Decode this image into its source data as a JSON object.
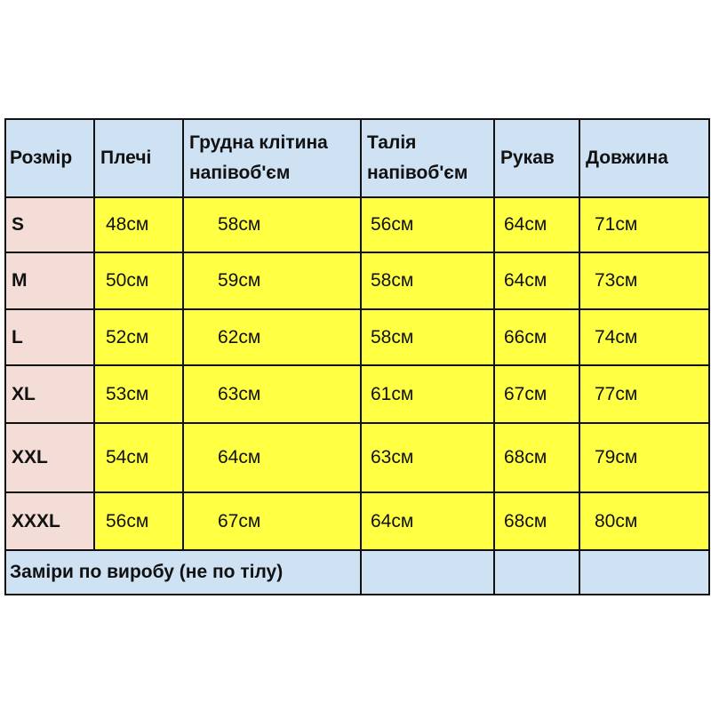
{
  "table": {
    "header": [
      "Розмір",
      "Плечі",
      "Грудна клітина напівоб'єм",
      "Талія напівоб'єм",
      "Рукав",
      "Довжина"
    ],
    "rows": [
      [
        "S",
        "48см",
        "58см",
        "56см",
        "64см",
        "71см"
      ],
      [
        "M",
        "50см",
        "59см",
        "58см",
        "64см",
        "73см"
      ],
      [
        "L",
        "52см",
        "62см",
        "58см",
        "66см",
        "74см"
      ],
      [
        "XL",
        "53см",
        "63см",
        "61см",
        "67см",
        "77см"
      ],
      [
        "XXL",
        "54см",
        "64см",
        "63см",
        "68см",
        "79см"
      ],
      [
        "XXXL",
        "56см",
        "67см",
        "64см",
        "68см",
        "80см"
      ]
    ],
    "footer": "Заміри по виробу (не по тілу)"
  }
}
